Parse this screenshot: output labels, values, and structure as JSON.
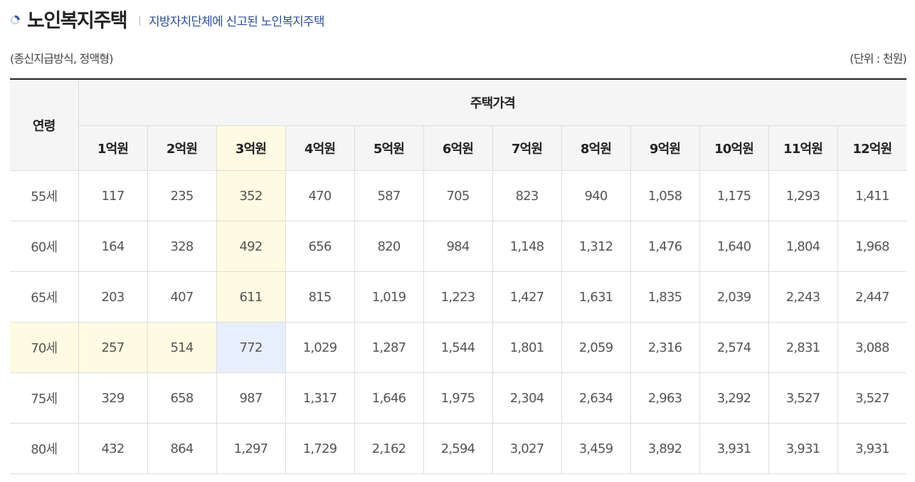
{
  "header": {
    "title": "노인복지주택",
    "subtitle": "지방자치단체에 신고된 노인복지주택",
    "icon": "loading-ring-icon",
    "accent_color": "#2a4f9e"
  },
  "meta": {
    "left": "(종신지급방식, 정액형)",
    "right": "(단위 : 천원)"
  },
  "table": {
    "row_header": "연령",
    "group_header": "주택가격",
    "columns": [
      "1억원",
      "2억원",
      "3억원",
      "4억원",
      "5억원",
      "6억원",
      "7억원",
      "8억원",
      "9억원",
      "10억원",
      "11억원",
      "12억원"
    ],
    "rows": [
      {
        "age": "55세",
        "values": [
          "117",
          "235",
          "352",
          "470",
          "587",
          "705",
          "823",
          "940",
          "1,058",
          "1,175",
          "1,293",
          "1,411"
        ]
      },
      {
        "age": "60세",
        "values": [
          "164",
          "328",
          "492",
          "656",
          "820",
          "984",
          "1,148",
          "1,312",
          "1,476",
          "1,640",
          "1,804",
          "1,968"
        ]
      },
      {
        "age": "65세",
        "values": [
          "203",
          "407",
          "611",
          "815",
          "1,019",
          "1,223",
          "1,427",
          "1,631",
          "1,835",
          "2,039",
          "2,243",
          "2,447"
        ]
      },
      {
        "age": "70세",
        "values": [
          "257",
          "514",
          "772",
          "1,029",
          "1,287",
          "1,544",
          "1,801",
          "2,059",
          "2,316",
          "2,574",
          "2,831",
          "3,088"
        ]
      },
      {
        "age": "75세",
        "values": [
          "329",
          "658",
          "987",
          "1,317",
          "1,646",
          "1,975",
          "2,304",
          "2,634",
          "2,963",
          "3,292",
          "3,527",
          "3,527"
        ]
      },
      {
        "age": "80세",
        "values": [
          "432",
          "864",
          "1,297",
          "1,729",
          "2,162",
          "2,594",
          "3,027",
          "3,459",
          "3,892",
          "3,931",
          "3,931",
          "3,931"
        ]
      }
    ],
    "highlight": {
      "column_index": 2,
      "row_index": 3,
      "crosshair_color": "#fdfbe1",
      "intersection_color": "#e8effc"
    }
  }
}
